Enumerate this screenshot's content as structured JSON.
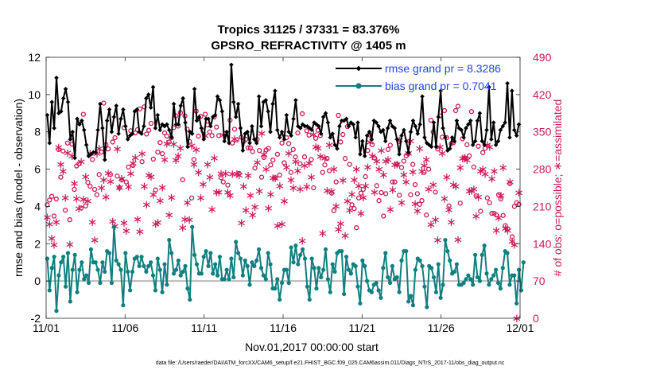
{
  "chart_data": {
    "type": "line",
    "title": "Tropics 31125 / 37331 = 83.376%",
    "subtitle": "GPSRO_REFRACTIVITY @ 1405 m",
    "xlabel": "Nov.01,2017 00:00:00 start",
    "ylabel_left": "rmse and bias (model - observation)",
    "ylabel_right": "# of obs: o=possible; ∗=assimilated",
    "footnote": "data file: /Users/raeder/DAI/ATM_forcXX/CAM6_setup/f.e21.FHIST_BGC.f09_025.CAM6assim.011/Diags_NTrS_2017-11/obs_diag_output.nc",
    "x_ticks": [
      "11/01",
      "11/06",
      "11/11",
      "11/16",
      "11/21",
      "11/26",
      "12/01"
    ],
    "y_left_ticks": [
      "-2",
      "0",
      "2",
      "4",
      "6",
      "8",
      "10",
      "12"
    ],
    "y_right_ticks": [
      "0",
      "70",
      "140",
      "210",
      "280",
      "350",
      "420",
      "490"
    ],
    "xlim": [
      0,
      30
    ],
    "ylim_left": [
      -2,
      12
    ],
    "ylim_right": [
      0,
      490
    ],
    "legend": [
      {
        "name": "rmse grand pr = 8.3286",
        "color": "#000000"
      },
      {
        "name": "bias grand pr = 0.7041",
        "color": "#0f7f7f"
      }
    ],
    "colors": {
      "rmse": "#000000",
      "bias": "#0f7f7f",
      "obs": "#cc1a5a",
      "zero_line": "#bbbbbb",
      "legend_text": "#1f45e6"
    },
    "series": [
      {
        "name": "rmse",
        "values": [
          8.9,
          7.4,
          9.6,
          8.2,
          10.9,
          9.0,
          9.1,
          9.8,
          10.3,
          9.6,
          7.6,
          8.0,
          6.6,
          8.7,
          8.4,
          8.6,
          8.1,
          7.3,
          6.7,
          6.8,
          6.9,
          6.9,
          8.1,
          9.5,
          8.2,
          6.5,
          8.6,
          9.2,
          8.0,
          8.8,
          9.4,
          7.9,
          8.7,
          9.2,
          8.3,
          7.6,
          7.8,
          7.9,
          9.1,
          9.2,
          8.0,
          7.9,
          8.3,
          9.8,
          10.0,
          9.3,
          10.4,
          8.2,
          8.9,
          8.1,
          8.4,
          8.3,
          8.4,
          8.1,
          7.7,
          9.5,
          8.4,
          8.4,
          9.4,
          9.8,
          8.5,
          7.2,
          8.0,
          7.9,
          10.3,
          8.6,
          8.8,
          8.2,
          7.6,
          8.7,
          8.7,
          8.3,
          8.8,
          8.9,
          9.9,
          9.7,
          9.1,
          7.5,
          8.0,
          7.4,
          11.6,
          9.6,
          8.8,
          9.5,
          8.2,
          7.0,
          7.9,
          8.0,
          7.4,
          8.3,
          7.6,
          7.4,
          9.9,
          8.3,
          9.6,
          9.7,
          9.1,
          8.0,
          9.5,
          10.2,
          8.1,
          7.7,
          8.0,
          7.6,
          8.9,
          8.0,
          7.8,
          8.7,
          9.7,
          8.3,
          8.2,
          8.4,
          8.3,
          8.3,
          8.2,
          8.1,
          8.5,
          8.4,
          8.3,
          7.9,
          8.8,
          9.0,
          8.5,
          7.7,
          7.9,
          7.3,
          7.1,
          8.3,
          8.6,
          8.6,
          8.7,
          8.3,
          8.5,
          8.4,
          7.7,
          8.5,
          6.8,
          7.5,
          6.7,
          7.8,
          8.0,
          7.6,
          8.6,
          8.5,
          8.3,
          8.0,
          8.1,
          7.5,
          8.2,
          8.6,
          8.3,
          8.2,
          7.6,
          6.8,
          7.8,
          8.1,
          7.5,
          6.9,
          8.0,
          8.6,
          8.3,
          7.9,
          8.4,
          9.9,
          7.7,
          7.4,
          7.3,
          7.2,
          8.5,
          7.2,
          8.8,
          10.2,
          8.2,
          7.7,
          7.0,
          7.1,
          7.7,
          7.5,
          8.6,
          8.2,
          8.1,
          7.7,
          8.2,
          8.4,
          8.6,
          7.3,
          7.5,
          8.6,
          9.0,
          7.5,
          7.3,
          8.1,
          10.4,
          7.6,
          8.5,
          7.3,
          7.5,
          8.1,
          8.3,
          8.5,
          10.6,
          7.7,
          10.2,
          8.1,
          7.8,
          8.4
        ]
      },
      {
        "name": "bias",
        "values": [
          1.2,
          -0.5,
          0.7,
          1.3,
          -1.6,
          0.3,
          1.0,
          1.3,
          -0.3,
          1.5,
          -1.1,
          0.6,
          1.4,
          -0.6,
          0.6,
          1.0,
          0.1,
          0.3,
          -0.1,
          1.7,
          1.0,
          1.0,
          0.6,
          -0.1,
          1.0,
          0.5,
          1.6,
          1.5,
          -0.1,
          2.9,
          1.1,
          0.9,
          0.6,
          -1.3,
          1.5,
          0.5,
          -0.5,
          0.5,
          1.2,
          1.3,
          0.8,
          1.3,
          0.8,
          0.5,
          0.8,
          1.0,
          0.3,
          -0.5,
          1.2,
          0.6,
          -0.6,
          0.9,
          -0.2,
          2.2,
          1.5,
          0.4,
          0.6,
          1.1,
          0.3,
          0.5,
          0.8,
          -0.4,
          -1.0,
          2.9,
          1.4,
          0.9,
          0.4,
          0.4,
          1.3,
          1.6,
          0.8,
          1.5,
          0.4,
          0.9,
          0.3,
          1.3,
          0.1,
          0.1,
          0.6,
          0.1,
          1.2,
          0.2,
          2.1,
          1.5,
          1.2,
          0.3,
          1.1,
          0.8,
          -0.2,
          1.0,
          0.8,
          1.1,
          1.7,
          0.7,
          0.3,
          0.1,
          1.5,
          0.9,
          -0.4,
          -0.4,
          0.1,
          -1.0,
          -0.1,
          0.6,
          0.6,
          -0.1,
          1.8,
          1.0,
          1.9,
          0.9,
          1.4,
          1.7,
          1.2,
          -0.3,
          -1.0,
          1.2,
          0.7,
          -0.4,
          0.7,
          0.2,
          0.6,
          1.7,
          0.1,
          -0.6,
          0.9,
          0.5,
          1.5,
          1.6,
          1.6,
          -0.7,
          1.3,
          0.6,
          0.4,
          0.9,
          0.8,
          -0.3,
          -1.2,
          1.1,
          0.8,
          0.0,
          -0.5,
          -0.6,
          -0.2,
          -0.1,
          -0.5,
          -0.9,
          0.7,
          1.5,
          0.2,
          -0.1,
          0.8,
          0.1,
          0.2,
          -0.6,
          1.1,
          1.6,
          1.6,
          -1.1,
          -0.8,
          -1.3,
          0.6,
          1.2,
          1.1,
          0.8,
          -0.3,
          -1.4,
          0.8,
          0.7,
          0.2,
          -0.6,
          0.9,
          -0.9,
          -0.2,
          2.2,
          1.6,
          1.1,
          0.4,
          0.5,
          0.9,
          -0.2,
          -0.2,
          -0.1,
          0.1,
          0.3,
          0.1,
          -0.2,
          1.4,
          0.2,
          0.0,
          1.4,
          1.9,
          0.4,
          -0.2,
          0.1,
          0.3,
          0.6,
          -0.1,
          -0.4,
          0.7,
          1.6,
          1.5,
          -0.2,
          0.3,
          0.3,
          -1.2,
          0.6,
          -0.5,
          1.0
        ]
      },
      {
        "name": "obs_possible",
        "values": [
          213,
          222,
          229,
          192,
          224,
          317,
          265,
          314,
          203,
          329,
          185,
          327,
          242,
          286,
          290,
          207,
          383,
          211,
          255,
          248,
          298,
          242,
          232,
          270,
          312,
          404,
          326,
          318,
          270,
          331,
          339,
          267,
          245,
          260,
          358,
          256,
          284,
          352,
          287,
          348,
          354,
          393,
          294,
          397,
          346,
          353,
          366,
          299,
          241,
          312,
          330,
          309,
          348,
          342,
          331,
          339,
          358,
          380,
          361,
          386,
          260,
          380,
          355,
          332,
          226,
          298,
          389,
          342,
          379,
          352,
          383,
          363,
          350,
          343,
          378,
          359,
          343,
          264,
          256,
          347,
          250,
          372,
          329,
          355,
          335,
          272,
          340,
          332,
          336,
          320,
          320,
          313,
          282,
          336,
          315,
          265,
          302,
          316,
          319,
          288,
          297,
          264,
          308,
          269,
          329,
          292,
          339,
          328,
          274,
          317,
          303,
          348,
          290,
          384,
          303,
          352,
          344,
          298,
          245,
          338,
          353,
          343,
          274,
          288,
          300,
          277,
          235,
          202,
          256,
          381,
          331,
          345,
          300,
          360,
          289,
          213,
          206,
          170,
          226,
          235,
          242,
          266,
          315,
          344,
          326,
          301,
          249,
          221,
          236,
          192,
          234,
          317,
          325,
          256,
          256,
          289,
          231,
          283,
          295,
          305,
          309,
          232,
          289,
          251,
          234,
          214,
          221,
          274,
          194,
          280,
          372,
          350,
          237,
          318,
          380,
          340,
          390,
          339,
          211,
          328,
          330,
          390,
          398,
          216,
          337,
          301,
          326,
          305,
          388,
          284,
          230,
          323,
          201,
          311,
          319,
          226,
          217,
          197,
          197,
          194,
          232,
          224,
          193,
          174,
          168,
          253,
          153,
          210,
          217,
          214
        ]
      },
      {
        "name": "obs_assimilated",
        "values": [
          190,
          177,
          150,
          138,
          181,
          321,
          289,
          276,
          226,
          311,
          139,
          305,
          253,
          225,
          206,
          294,
          223,
          266,
          220,
          310,
          181,
          147,
          309,
          319,
          245,
          260,
          228,
          273,
          257,
          182,
          173,
          318,
          246,
          262,
          179,
          164,
          247,
          272,
          291,
          302,
          186,
          163,
          309,
          248,
          214,
          269,
          266,
          232,
          177,
          180,
          221,
          246,
          298,
          328,
          194,
          227,
          327,
          297,
          305,
          320,
          170,
          186,
          217,
          185,
          324,
          289,
          317,
          274,
          226,
          252,
          343,
          289,
          265,
          205,
          301,
          237,
          237,
          272,
          344,
          272,
          237,
          231,
          271,
          337,
          271,
          269,
          179,
          248,
          203,
          268,
          231,
          194,
          209,
          293,
          239,
          347,
          308,
          280,
          207,
          233,
          264,
          263,
          174,
          249,
          177,
          220,
          284,
          310,
          260,
          245,
          294,
          277,
          243,
          146,
          287,
          247,
          291,
          265,
          345,
          322,
          320,
          304,
          160,
          301,
          240,
          326,
          238,
          280,
          211,
          167,
          178,
          259,
          155,
          220,
          203,
          233,
          260,
          280,
          249,
          197,
          227,
          249,
          284,
          331,
          305,
          237,
          295,
          280,
          315,
          270,
          295,
          298,
          205,
          241,
          288,
          289,
          335,
          217,
          270,
          256,
          310,
          333,
          275,
          215,
          202,
          319,
          276,
          287,
          298,
          243,
          176,
          251,
          185,
          147,
          322,
          310,
          225,
          265,
          204,
          181,
          251,
          248,
          148,
          283,
          300,
          302,
          297,
          239,
          240,
          243,
          192,
          228,
          276,
          280,
          271,
          326,
          322,
          262,
          276,
          165,
          189,
          231,
          283,
          169,
          165,
          256,
          145,
          138,
          0,
          236
        ]
      }
    ]
  }
}
